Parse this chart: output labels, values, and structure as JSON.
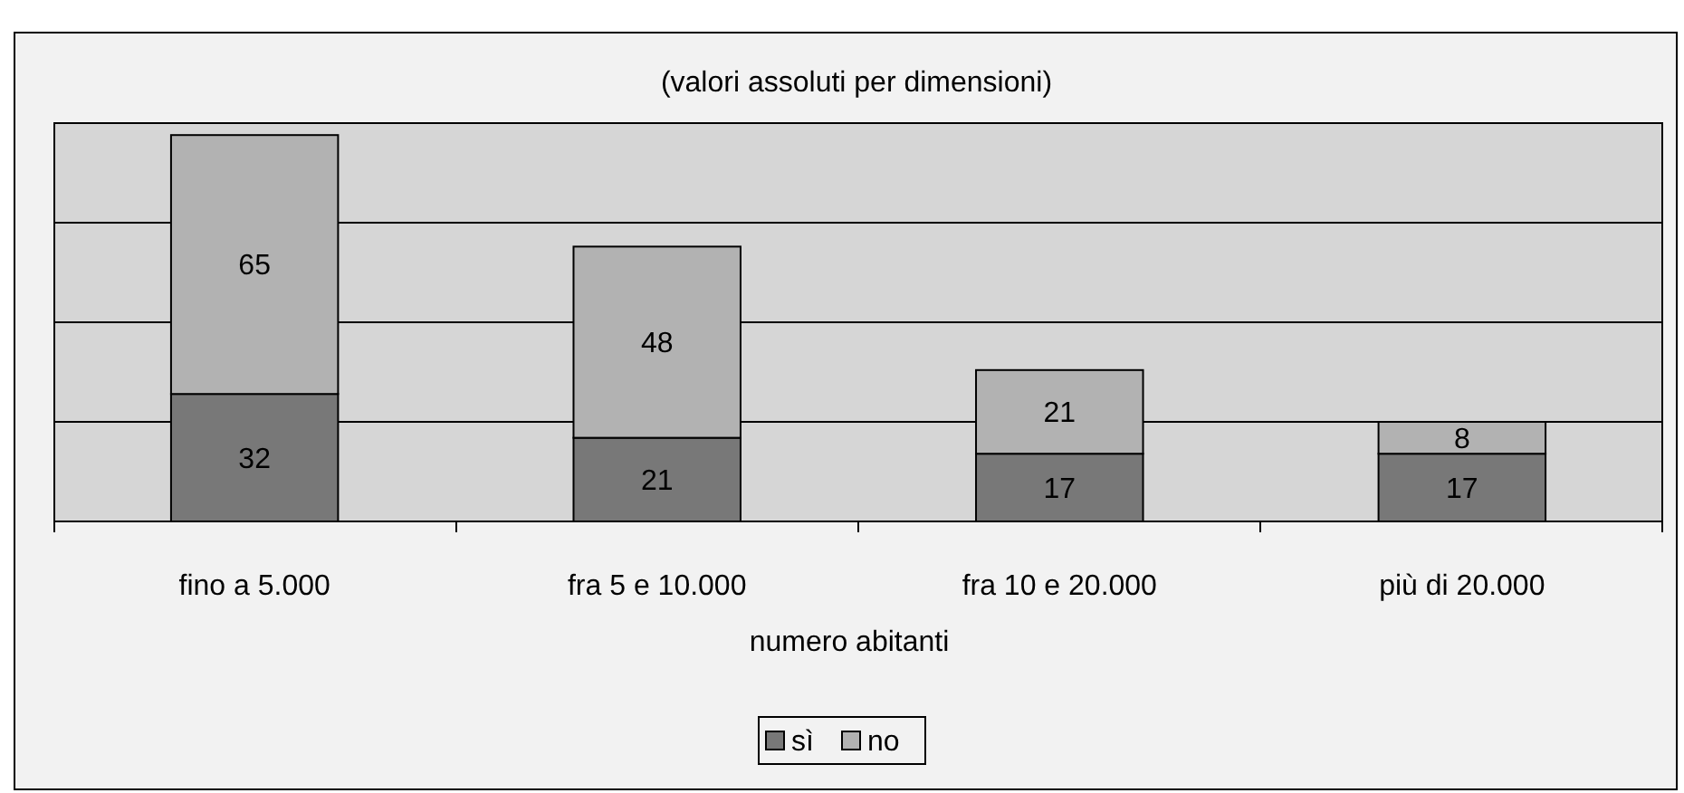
{
  "chart_data": {
    "type": "bar",
    "title": "(valori assoluti per dimensioni)",
    "xlabel": "numero abitanti",
    "categories": [
      "fino a 5.000",
      "fra 5 e 10.000",
      "fra 10 e 20.000",
      "più di 20.000"
    ],
    "stacked": true,
    "series": [
      {
        "name": "sì",
        "color": "#787878",
        "values": [
          32,
          21,
          17,
          17
        ]
      },
      {
        "name": "no",
        "color": "#b2b2b2",
        "values": [
          65,
          48,
          21,
          8
        ]
      }
    ],
    "ylim": [
      0,
      100
    ],
    "yticks": [
      {
        "value": 0,
        "label": null
      },
      {
        "value": 25,
        "label": null
      },
      {
        "value": 50,
        "label": null
      },
      {
        "value": 75,
        "label": null
      },
      {
        "value": 100,
        "label": null
      }
    ],
    "tick_labels": "x",
    "grid": "y",
    "data_labels": true,
    "legend": "bottom"
  }
}
